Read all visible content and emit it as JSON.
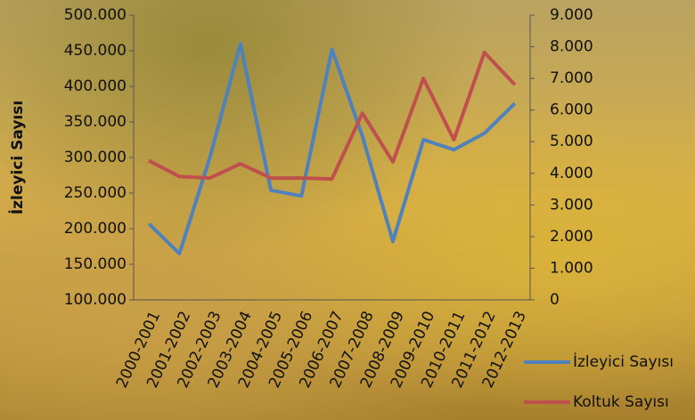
{
  "chart_data": {
    "type": "line",
    "y_label": "İzleyici Sayısı",
    "categories": [
      "2000-2001",
      "2001-2002",
      "2002-2003",
      "2003-2004",
      "2004-2005",
      "2005-2006",
      "2006-2007",
      "2007-2008",
      "2008-2009",
      "2009-2010",
      "2010-2011",
      "2011-2012",
      "2012-2013"
    ],
    "series": [
      {
        "name": "İzleyici Sayısı",
        "color": "#4f81bd",
        "values": [
          207000,
          165000,
          300000,
          460000,
          254000,
          246000,
          452000,
          330000,
          182000,
          325000,
          311000,
          334000,
          376000
        ]
      },
      {
        "name": "Koltuk Sayısı",
        "color": "#c0504d",
        "axis": "y2",
        "values": [
          4400,
          3900,
          3850,
          4300,
          3850,
          3850,
          3820,
          5900,
          4360,
          7000,
          5060,
          7820,
          6800
        ]
      }
    ],
    "ylim": [
      100000,
      500000
    ],
    "yticks": [
      {
        "value": 100000,
        "label": "100.000"
      },
      {
        "value": 150000,
        "label": "150.000"
      },
      {
        "value": 200000,
        "label": "200.000"
      },
      {
        "value": 250000,
        "label": "250.000"
      },
      {
        "value": 300000,
        "label": "300.000"
      },
      {
        "value": 350000,
        "label": "350.000"
      },
      {
        "value": 400000,
        "label": "400.000"
      },
      {
        "value": 450000,
        "label": "450.000"
      },
      {
        "value": 500000,
        "label": "500.000"
      }
    ],
    "y2lim": [
      0,
      9000
    ],
    "y2ticks": [
      0,
      {
        "value": 1000,
        "label": "1.000"
      },
      {
        "value": 2000,
        "label": "2.000"
      },
      {
        "value": 3000,
        "label": "3.000"
      },
      {
        "value": 4000,
        "label": "4.000"
      },
      {
        "value": 5000,
        "label": "5.000"
      },
      {
        "value": 6000,
        "label": "6.000"
      },
      {
        "value": 7000,
        "label": "7.000"
      },
      {
        "value": 8000,
        "label": "8.000"
      },
      {
        "value": 9000,
        "label": "9.000"
      }
    ],
    "grid": false,
    "legend": "bottom-right"
  }
}
